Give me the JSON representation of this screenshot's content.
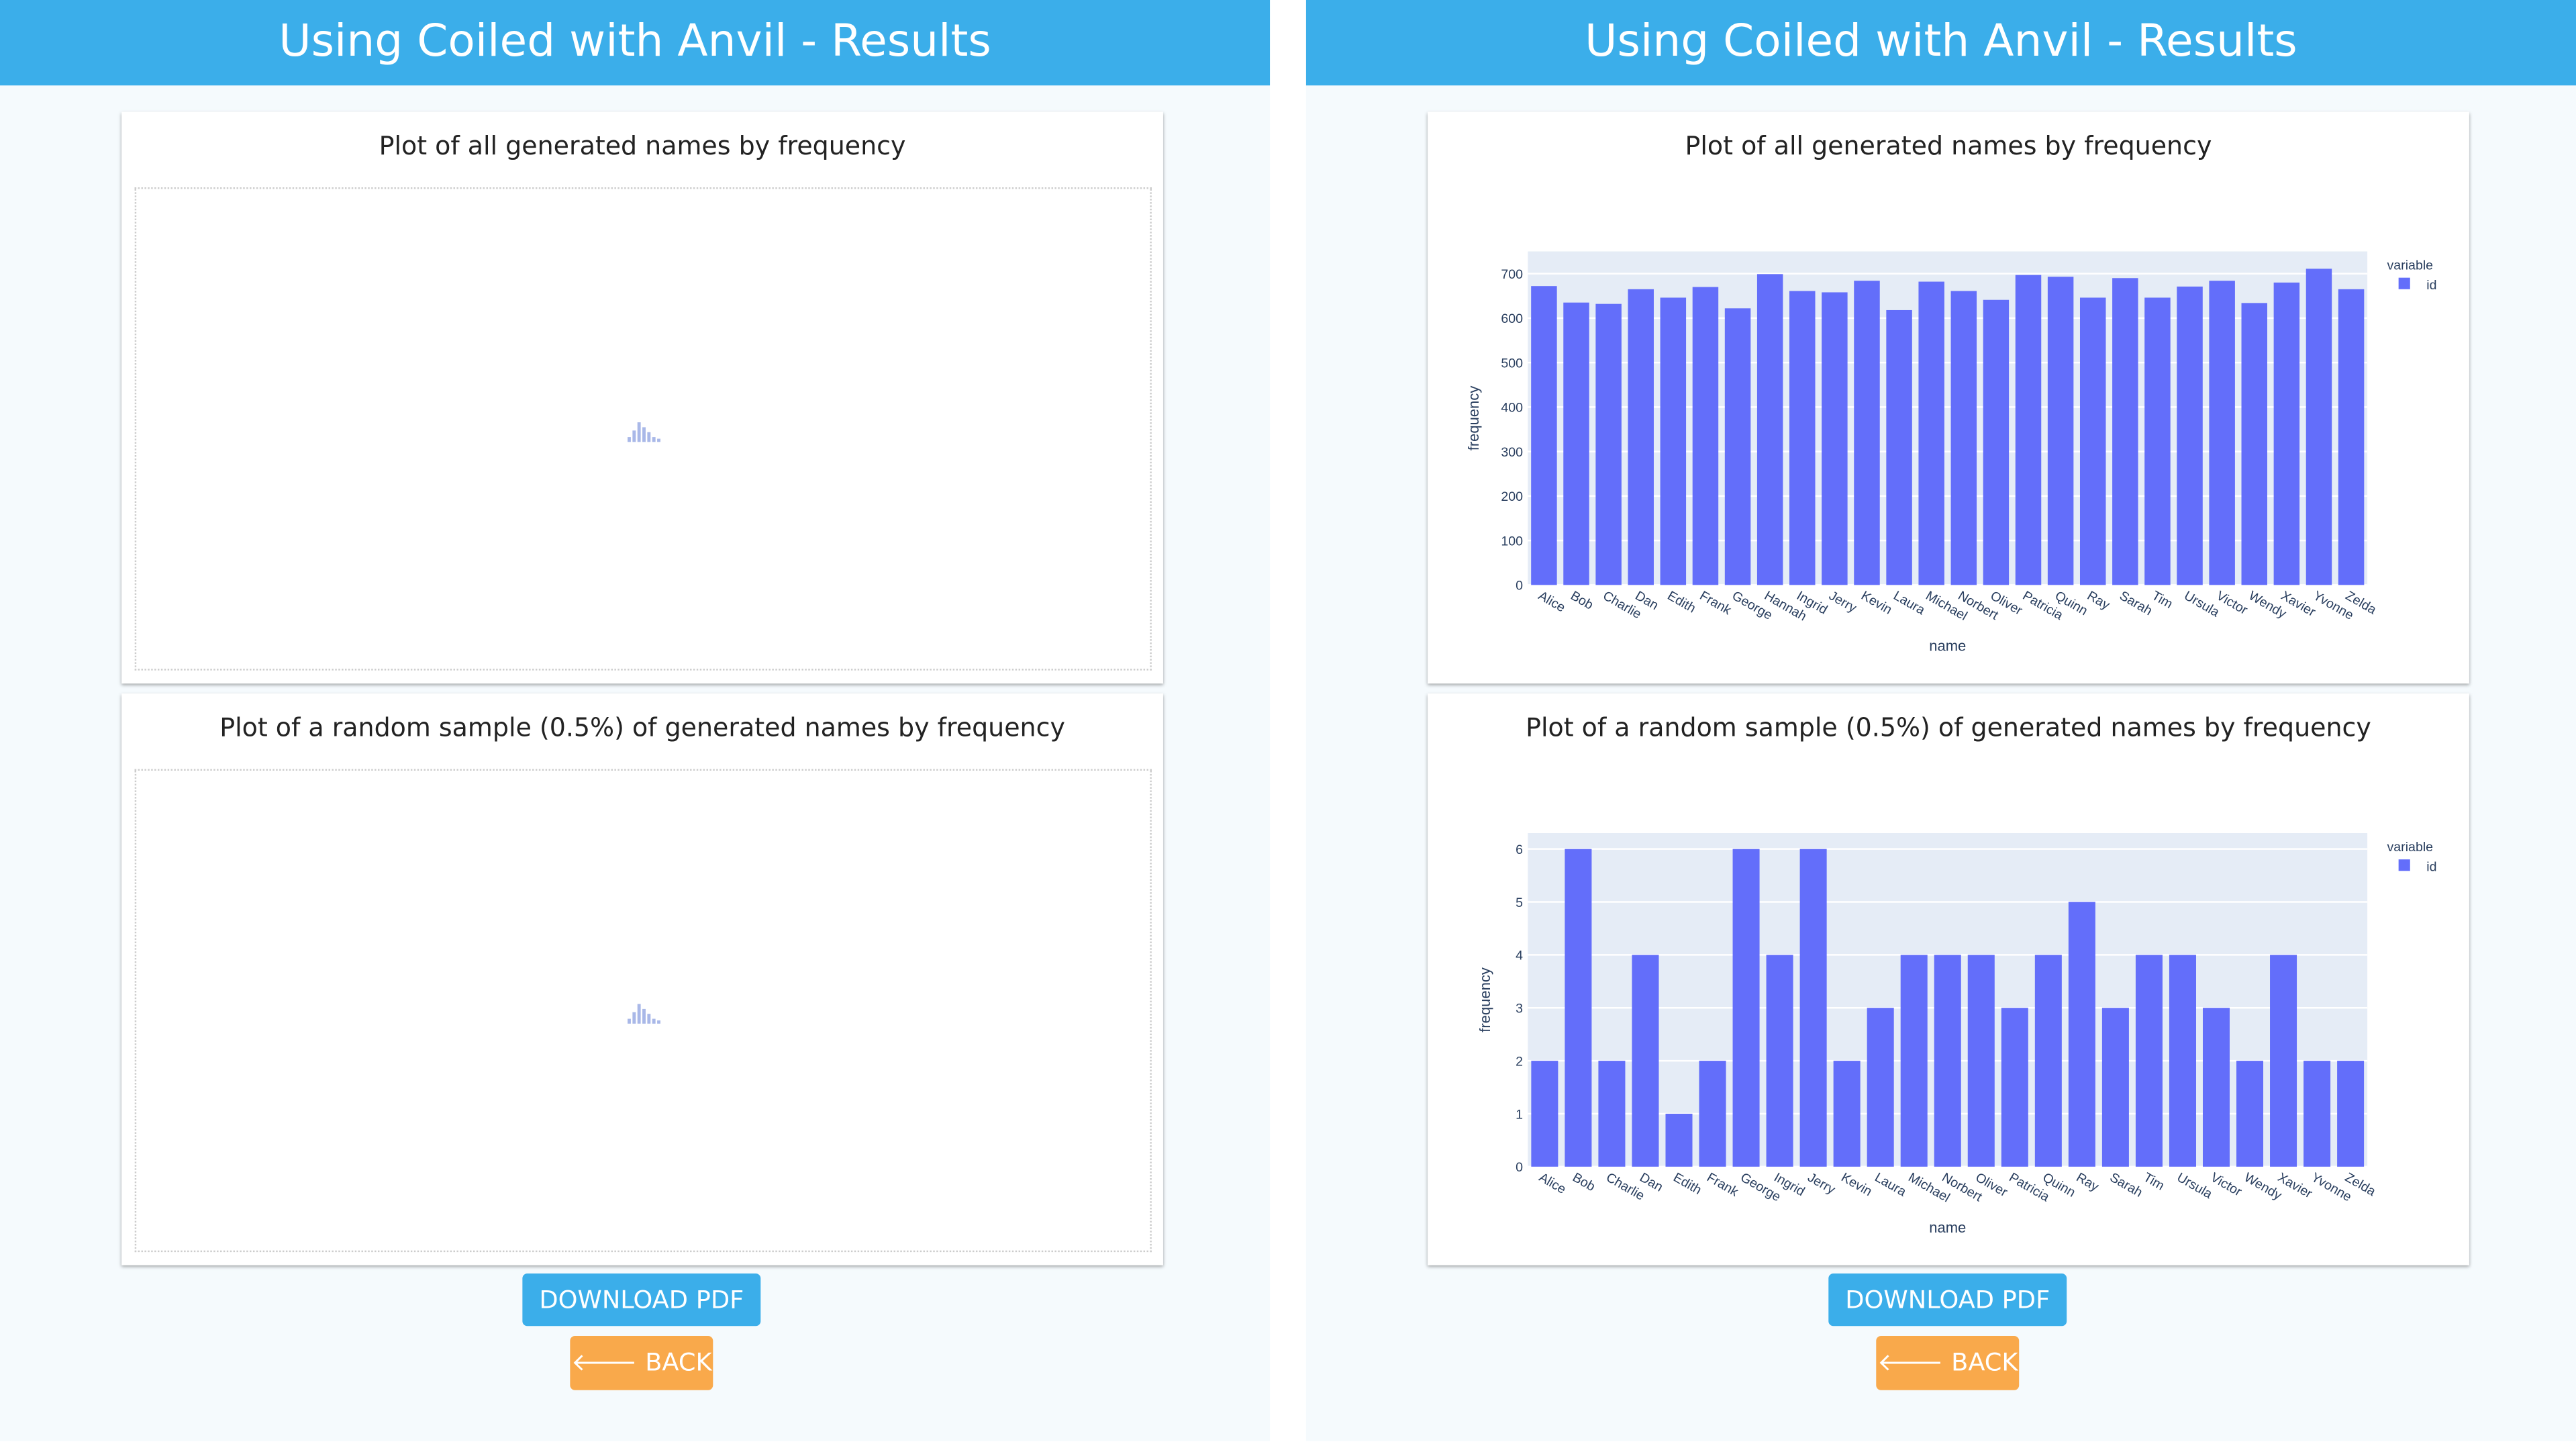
{
  "header": {
    "title": "Using Coiled with Anvil - Results"
  },
  "cards": {
    "all_title": "Plot of all generated names by frequency",
    "sample_title": "Plot of a random sample (0.5%) of generated names by frequency"
  },
  "buttons": {
    "download": "DOWNLOAD PDF",
    "back": "BACK"
  },
  "icons": {
    "back": "arrow-left-icon",
    "loading": "bar-chart-loading-icon"
  },
  "colors": {
    "header": "#3baeea",
    "download": "#3baeea",
    "back": "#f9a94b",
    "bar": "#636efa",
    "plot_bg": "#e5ecf6"
  },
  "chart_data": [
    {
      "type": "bar",
      "title": "",
      "xlabel": "name",
      "ylabel": "frequency",
      "ylim": [
        0,
        750
      ],
      "yticks": [
        0,
        100,
        200,
        300,
        400,
        500,
        600,
        700
      ],
      "grid": true,
      "legend": {
        "title": "variable",
        "placement": "top-right"
      },
      "categories": [
        "Alice",
        "Bob",
        "Charlie",
        "Dan",
        "Edith",
        "Frank",
        "George",
        "Hannah",
        "Ingrid",
        "Jerry",
        "Kevin",
        "Laura",
        "Michael",
        "Norbert",
        "Oliver",
        "Patricia",
        "Quinn",
        "Ray",
        "Sarah",
        "Tim",
        "Ursula",
        "Victor",
        "Wendy",
        "Xavier",
        "Yvonne",
        "Zelda"
      ],
      "series": [
        {
          "name": "id",
          "values": [
            672,
            635,
            632,
            665,
            646,
            670,
            622,
            699,
            661,
            658,
            684,
            618,
            682,
            661,
            641,
            697,
            693,
            646,
            690,
            646,
            671,
            684,
            634,
            680,
            711,
            665
          ]
        }
      ]
    },
    {
      "type": "bar",
      "title": "",
      "xlabel": "name",
      "ylabel": "frequency",
      "ylim": [
        0,
        6.3
      ],
      "yticks": [
        0,
        1,
        2,
        3,
        4,
        5,
        6
      ],
      "grid": true,
      "legend": {
        "title": "variable",
        "placement": "top-right"
      },
      "categories": [
        "Alice",
        "Bob",
        "Charlie",
        "Dan",
        "Edith",
        "Frank",
        "George",
        "Ingrid",
        "Jerry",
        "Kevin",
        "Laura",
        "Michael",
        "Norbert",
        "Oliver",
        "Patricia",
        "Quinn",
        "Ray",
        "Sarah",
        "Tim",
        "Ursula",
        "Victor",
        "Wendy",
        "Xavier",
        "Yvonne",
        "Zelda"
      ],
      "series": [
        {
          "name": "id",
          "values": [
            2,
            6,
            2,
            4,
            1,
            2,
            6,
            4,
            6,
            2,
            3,
            4,
            4,
            4,
            3,
            4,
            5,
            3,
            4,
            4,
            3,
            2,
            4,
            2,
            2
          ]
        }
      ]
    }
  ]
}
